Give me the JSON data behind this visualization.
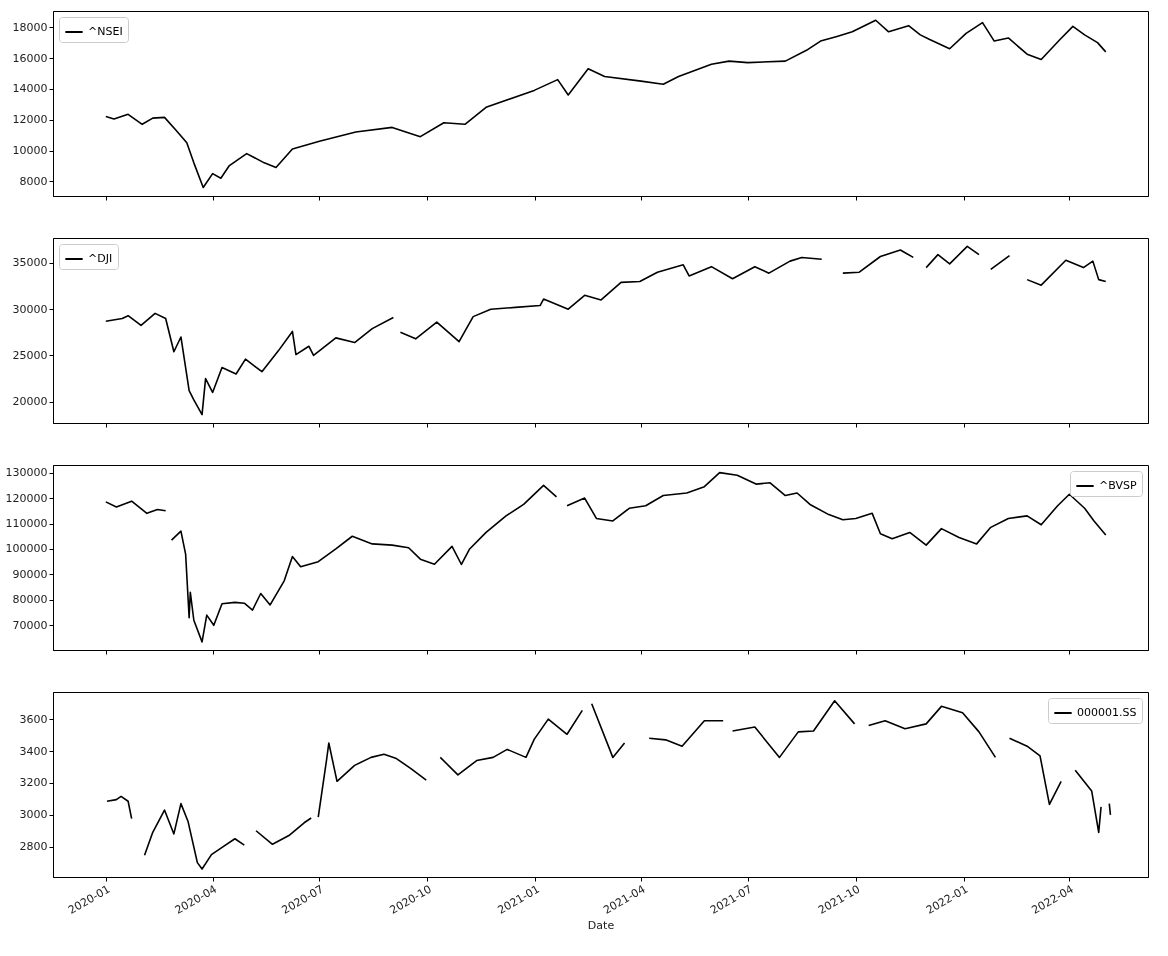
{
  "chart_data": [
    {
      "type": "line",
      "legend": "top left",
      "tick_labels": "y",
      "xlim": [
        "2019-11-17",
        "2022-06-07"
      ],
      "xticks": [
        "2020-01",
        "2020-04",
        "2020-07",
        "2020-10",
        "2021-01",
        "2021-04",
        "2021-07",
        "2021-10",
        "2022-01",
        "2022-04"
      ],
      "ylim": [
        7050,
        19050
      ],
      "yticks": [
        8000,
        10000,
        12000,
        14000,
        16000,
        18000
      ],
      "x": [
        "2020-01-01",
        "2020-01-08",
        "2020-01-20",
        "2020-02-01",
        "2020-02-10",
        "2020-02-20",
        "2020-03-01",
        "2020-03-10",
        "2020-03-16",
        "2020-03-24",
        "2020-04-01",
        "2020-04-08",
        "2020-04-15",
        "2020-04-30",
        "2020-05-15",
        "2020-05-25",
        "2020-06-08",
        "2020-07-01",
        "2020-08-01",
        "2020-09-01",
        "2020-09-25",
        "2020-10-15",
        "2020-11-02",
        "2020-11-20",
        "2020-12-31",
        "2021-01-20",
        "2021-01-29",
        "2021-02-15",
        "2021-03-01",
        "2021-04-01",
        "2021-04-20",
        "2021-05-03",
        "2021-05-31",
        "2021-06-15",
        "2021-07-01",
        "2021-08-02",
        "2021-08-20",
        "2021-09-01",
        "2021-09-15",
        "2021-09-28",
        "2021-10-18",
        "2021-10-29",
        "2021-11-15",
        "2021-11-25",
        "2021-12-03",
        "2021-12-20",
        "2022-01-03",
        "2022-01-17",
        "2022-01-27",
        "2022-02-08",
        "2022-02-24",
        "2022-03-08",
        "2022-03-24",
        "2022-04-04",
        "2022-04-14",
        "2022-04-25",
        "2022-05-02"
      ],
      "series": [
        {
          "name": "^NSEI",
          "color": "#000000",
          "values": [
            12200,
            12050,
            12350,
            11700,
            12100,
            12150,
            11300,
            10500,
            9200,
            7600,
            8500,
            8200,
            9000,
            9800,
            9200,
            8900,
            10100,
            10600,
            11200,
            11500,
            10900,
            11800,
            11700,
            12800,
            13900,
            14600,
            13600,
            15300,
            14800,
            14500,
            14300,
            14800,
            15600,
            15800,
            15700,
            15800,
            16500,
            17100,
            17400,
            17700,
            18450,
            17700,
            18100,
            17500,
            17200,
            16600,
            17600,
            18300,
            17100,
            17300,
            16250,
            15900,
            17200,
            18050,
            17500,
            17000,
            16400
          ]
        }
      ]
    },
    {
      "type": "line",
      "legend": "top left",
      "tick_labels": "y",
      "xlim": [
        "2019-11-17",
        "2022-06-07"
      ],
      "xticks": [
        "2020-01",
        "2020-04",
        "2020-07",
        "2020-10",
        "2021-01",
        "2021-04",
        "2021-07",
        "2021-10",
        "2022-01",
        "2022-04"
      ],
      "ylim": [
        17700,
        37700
      ],
      "yticks": [
        20000,
        25000,
        30000,
        35000
      ],
      "x": [
        "2020-01-01",
        "2020-01-15",
        "2020-01-20",
        "2020-01-31",
        "2020-02-12",
        "2020-02-21",
        "2020-02-28",
        "2020-03-05",
        "2020-03-12",
        "2020-03-16",
        "2020-03-23",
        "2020-03-26",
        "2020-04-01",
        "2020-04-09",
        "2020-04-21",
        "2020-04-29",
        "2020-05-13",
        "2020-05-27",
        "2020-06-08",
        "2020-06-11",
        "2020-06-22",
        "2020-06-26",
        "2020-07-15",
        "2020-07-31",
        "2020-08-15",
        "2020-09-02",
        "2020-09-07",
        "2020-09-08",
        "2020-09-21",
        "2020-10-09",
        "2020-10-28",
        "2020-11-09",
        "2020-11-24",
        "2020-12-15",
        "2021-01-05",
        "2021-01-08",
        "2021-01-29",
        "2021-02-12",
        "2021-02-26",
        "2021-03-15",
        "2021-03-31",
        "2021-04-15",
        "2021-05-07",
        "2021-05-12",
        "2021-05-31",
        "2021-06-18",
        "2021-07-07",
        "2021-07-19",
        "2021-08-06",
        "2021-08-16",
        "2021-09-02",
        "2021-09-07",
        "2021-09-20",
        "2021-10-04",
        "2021-10-22",
        "2021-11-08",
        "2021-11-19",
        "2021-11-25",
        "2021-11-30",
        "2021-12-10",
        "2021-12-20",
        "2022-01-04",
        "2022-01-14",
        "2022-01-17",
        "2022-01-24",
        "2022-02-09",
        "2022-02-21",
        "2022-02-24",
        "2022-03-08",
        "2022-03-29",
        "2022-04-13",
        "2022-04-21",
        "2022-04-26",
        "2022-05-02"
      ],
      "series": [
        {
          "name": "^DJI",
          "color": "#000000",
          "values": [
            28700,
            29000,
            29300,
            28250,
            29550,
            29000,
            25400,
            27000,
            21200,
            20200,
            18600,
            22500,
            21000,
            23700,
            23000,
            24600,
            23250,
            25500,
            27600,
            25100,
            26000,
            25000,
            26900,
            26400,
            27900,
            29100,
            null,
            27500,
            26800,
            28600,
            26500,
            29200,
            30000,
            30200,
            30400,
            31100,
            30000,
            31500,
            31000,
            32900,
            33000,
            34000,
            34800,
            33600,
            34600,
            33300,
            34600,
            33900,
            35200,
            35600,
            35400,
            null,
            33900,
            34000,
            35700,
            36400,
            35600,
            null,
            34500,
            35900,
            34900,
            36800,
            35900,
            null,
            34300,
            35800,
            null,
            33200,
            32600,
            35300,
            34500,
            35200,
            33200,
            33000
          ]
        }
      ]
    },
    {
      "type": "line",
      "legend": "top right",
      "tick_labels": "y",
      "xlim": [
        "2019-11-17",
        "2022-06-07"
      ],
      "xticks": [
        "2020-01",
        "2020-04",
        "2020-07",
        "2020-10",
        "2021-01",
        "2021-04",
        "2021-07",
        "2021-10",
        "2022-01",
        "2022-04"
      ],
      "ylim": [
        60300,
        133000
      ],
      "yticks": [
        70000,
        80000,
        90000,
        100000,
        110000,
        120000,
        130000
      ],
      "x": [
        "2020-01-01",
        "2020-01-10",
        "2020-01-23",
        "2020-02-05",
        "2020-02-14",
        "2020-02-21",
        "2020-02-24",
        "2020-02-26",
        "2020-03-05",
        "2020-03-09",
        "2020-03-12",
        "2020-03-13",
        "2020-03-16",
        "2020-03-23",
        "2020-03-27",
        "2020-04-02",
        "2020-04-09",
        "2020-04-20",
        "2020-04-28",
        "2020-05-05",
        "2020-05-12",
        "2020-05-20",
        "2020-06-01",
        "2020-06-08",
        "2020-06-15",
        "2020-06-30",
        "2020-07-15",
        "2020-07-29",
        "2020-08-15",
        "2020-09-01",
        "2020-09-15",
        "2020-09-25",
        "2020-10-07",
        "2020-10-22",
        "2020-10-30",
        "2020-11-06",
        "2020-11-20",
        "2020-12-07",
        "2020-12-22",
        "2021-01-08",
        "2021-01-19",
        "2021-01-22",
        "2021-01-28",
        "2021-02-12",
        "2021-02-22",
        "2021-03-08",
        "2021-03-22",
        "2021-04-05",
        "2021-04-20",
        "2021-05-10",
        "2021-05-25",
        "2021-06-07",
        "2021-06-22",
        "2021-07-08",
        "2021-07-20",
        "2021-08-02",
        "2021-08-12",
        "2021-08-23",
        "2021-09-08",
        "2021-09-20",
        "2021-10-01",
        "2021-10-15",
        "2021-10-22",
        "2021-11-01",
        "2021-11-16",
        "2021-11-30",
        "2021-12-13",
        "2021-12-28",
        "2022-01-12",
        "2022-01-24",
        "2022-02-08",
        "2022-02-24",
        "2022-03-08",
        "2022-03-22",
        "2022-04-01",
        "2022-04-14",
        "2022-04-22",
        "2022-05-02"
      ],
      "series": [
        {
          "name": "^BVSP",
          "color": "#000000",
          "values": [
            118500,
            116500,
            118800,
            114000,
            115500,
            115000,
            null,
            103500,
            107000,
            98000,
            73000,
            83000,
            72000,
            63500,
            74000,
            70000,
            78500,
            79000,
            78700,
            76000,
            82500,
            78000,
            87500,
            97000,
            93000,
            95000,
            100000,
            105000,
            102000,
            101500,
            100500,
            96000,
            94000,
            101000,
            93900,
            100000,
            106500,
            113000,
            117500,
            125000,
            120500,
            null,
            117000,
            120000,
            112000,
            111000,
            116000,
            117000,
            121000,
            122000,
            124500,
            130000,
            129000,
            125500,
            126000,
            121000,
            122000,
            117500,
            113500,
            111500,
            112000,
            114000,
            106000,
            104000,
            106500,
            101500,
            108000,
            104500,
            102000,
            108500,
            112000,
            113000,
            109500,
            117000,
            121500,
            116000,
            111000,
            105500
          ]
        }
      ]
    },
    {
      "type": "line",
      "legend": "top right",
      "xlabel": "Date",
      "xlim": [
        "2019-11-17",
        "2022-06-07"
      ],
      "xticks": [
        "2020-01",
        "2020-04",
        "2020-07",
        "2020-10",
        "2021-01",
        "2021-04",
        "2021-07",
        "2021-10",
        "2022-01",
        "2022-04"
      ],
      "ylim": [
        2610,
        3770
      ],
      "yticks": [
        2800,
        3000,
        3200,
        3400,
        3600
      ],
      "x": [
        "2020-01-02",
        "2020-01-10",
        "2020-01-14",
        "2020-01-20",
        "2020-01-23",
        "2020-01-28",
        "2020-02-03",
        "2020-02-10",
        "2020-02-20",
        "2020-02-28",
        "2020-03-05",
        "2020-03-11",
        "2020-03-19",
        "2020-03-23",
        "2020-03-31",
        "2020-04-10",
        "2020-04-20",
        "2020-04-28",
        "2020-05-04",
        "2020-05-08",
        "2020-05-22",
        "2020-06-05",
        "2020-06-18",
        "2020-06-24",
        "2020-06-26",
        "2020-06-30",
        "2020-07-07",
        "2020-07-09",
        "2020-07-16",
        "2020-07-31",
        "2020-08-14",
        "2020-08-25",
        "2020-09-04",
        "2020-09-17",
        "2020-09-30",
        "2020-10-05",
        "2020-10-12",
        "2020-10-27",
        "2020-11-12",
        "2020-11-26",
        "2020-12-08",
        "2020-12-24",
        "2020-12-31",
        "2021-01-12",
        "2021-01-28",
        "2021-02-10",
        "2021-02-15",
        "2021-02-18",
        "2021-03-08",
        "2021-03-18",
        "2021-04-05",
        "2021-04-08",
        "2021-04-22",
        "2021-05-06",
        "2021-05-25",
        "2021-06-10",
        "2021-06-14",
        "2021-06-18",
        "2021-07-07",
        "2021-07-28",
        "2021-08-13",
        "2021-08-26",
        "2021-09-13",
        "2021-09-30",
        "2021-10-04",
        "2021-10-12",
        "2021-10-26",
        "2021-11-12",
        "2021-11-30",
        "2021-12-13",
        "2021-12-31",
        "2022-01-14",
        "2022-01-28",
        "2022-02-03",
        "2022-02-09",
        "2022-02-24",
        "2022-03-07",
        "2022-03-15",
        "2022-03-25",
        "2022-03-31",
        "2022-04-06",
        "2022-04-20",
        "2022-04-26",
        "2022-04-28",
        "2022-04-30",
        "2022-05-05",
        "2022-05-06"
      ],
      "series": [
        {
          "name": "000001.SS",
          "color": "#000000",
          "values": [
            3085,
            3095,
            3115,
            3085,
            2976,
            null,
            2746,
            2890,
            3030,
            2880,
            3070,
            2960,
            2700,
            2660,
            2750,
            2800,
            2850,
            2810,
            null,
            2900,
            2815,
            2870,
            2950,
            2980,
            null,
            2985,
            3340,
            3450,
            3210,
            3310,
            3360,
            3380,
            3355,
            3290,
            3218,
            null,
            3360,
            3250,
            3340,
            3360,
            3410,
            3360,
            3473,
            3600,
            3505,
            3655,
            null,
            3696,
            3360,
            3450,
            null,
            3480,
            3470,
            3430,
            3590,
            3590,
            null,
            3525,
            3550,
            3360,
            3520,
            3525,
            3715,
            3570,
            null,
            3560,
            3590,
            3540,
            3570,
            3680,
            3640,
            3520,
            3360,
            null,
            3480,
            3430,
            3370,
            3065,
            3210,
            null,
            3280,
            3150,
            2890,
            3050,
            null,
            3070,
            3000
          ]
        }
      ]
    }
  ]
}
